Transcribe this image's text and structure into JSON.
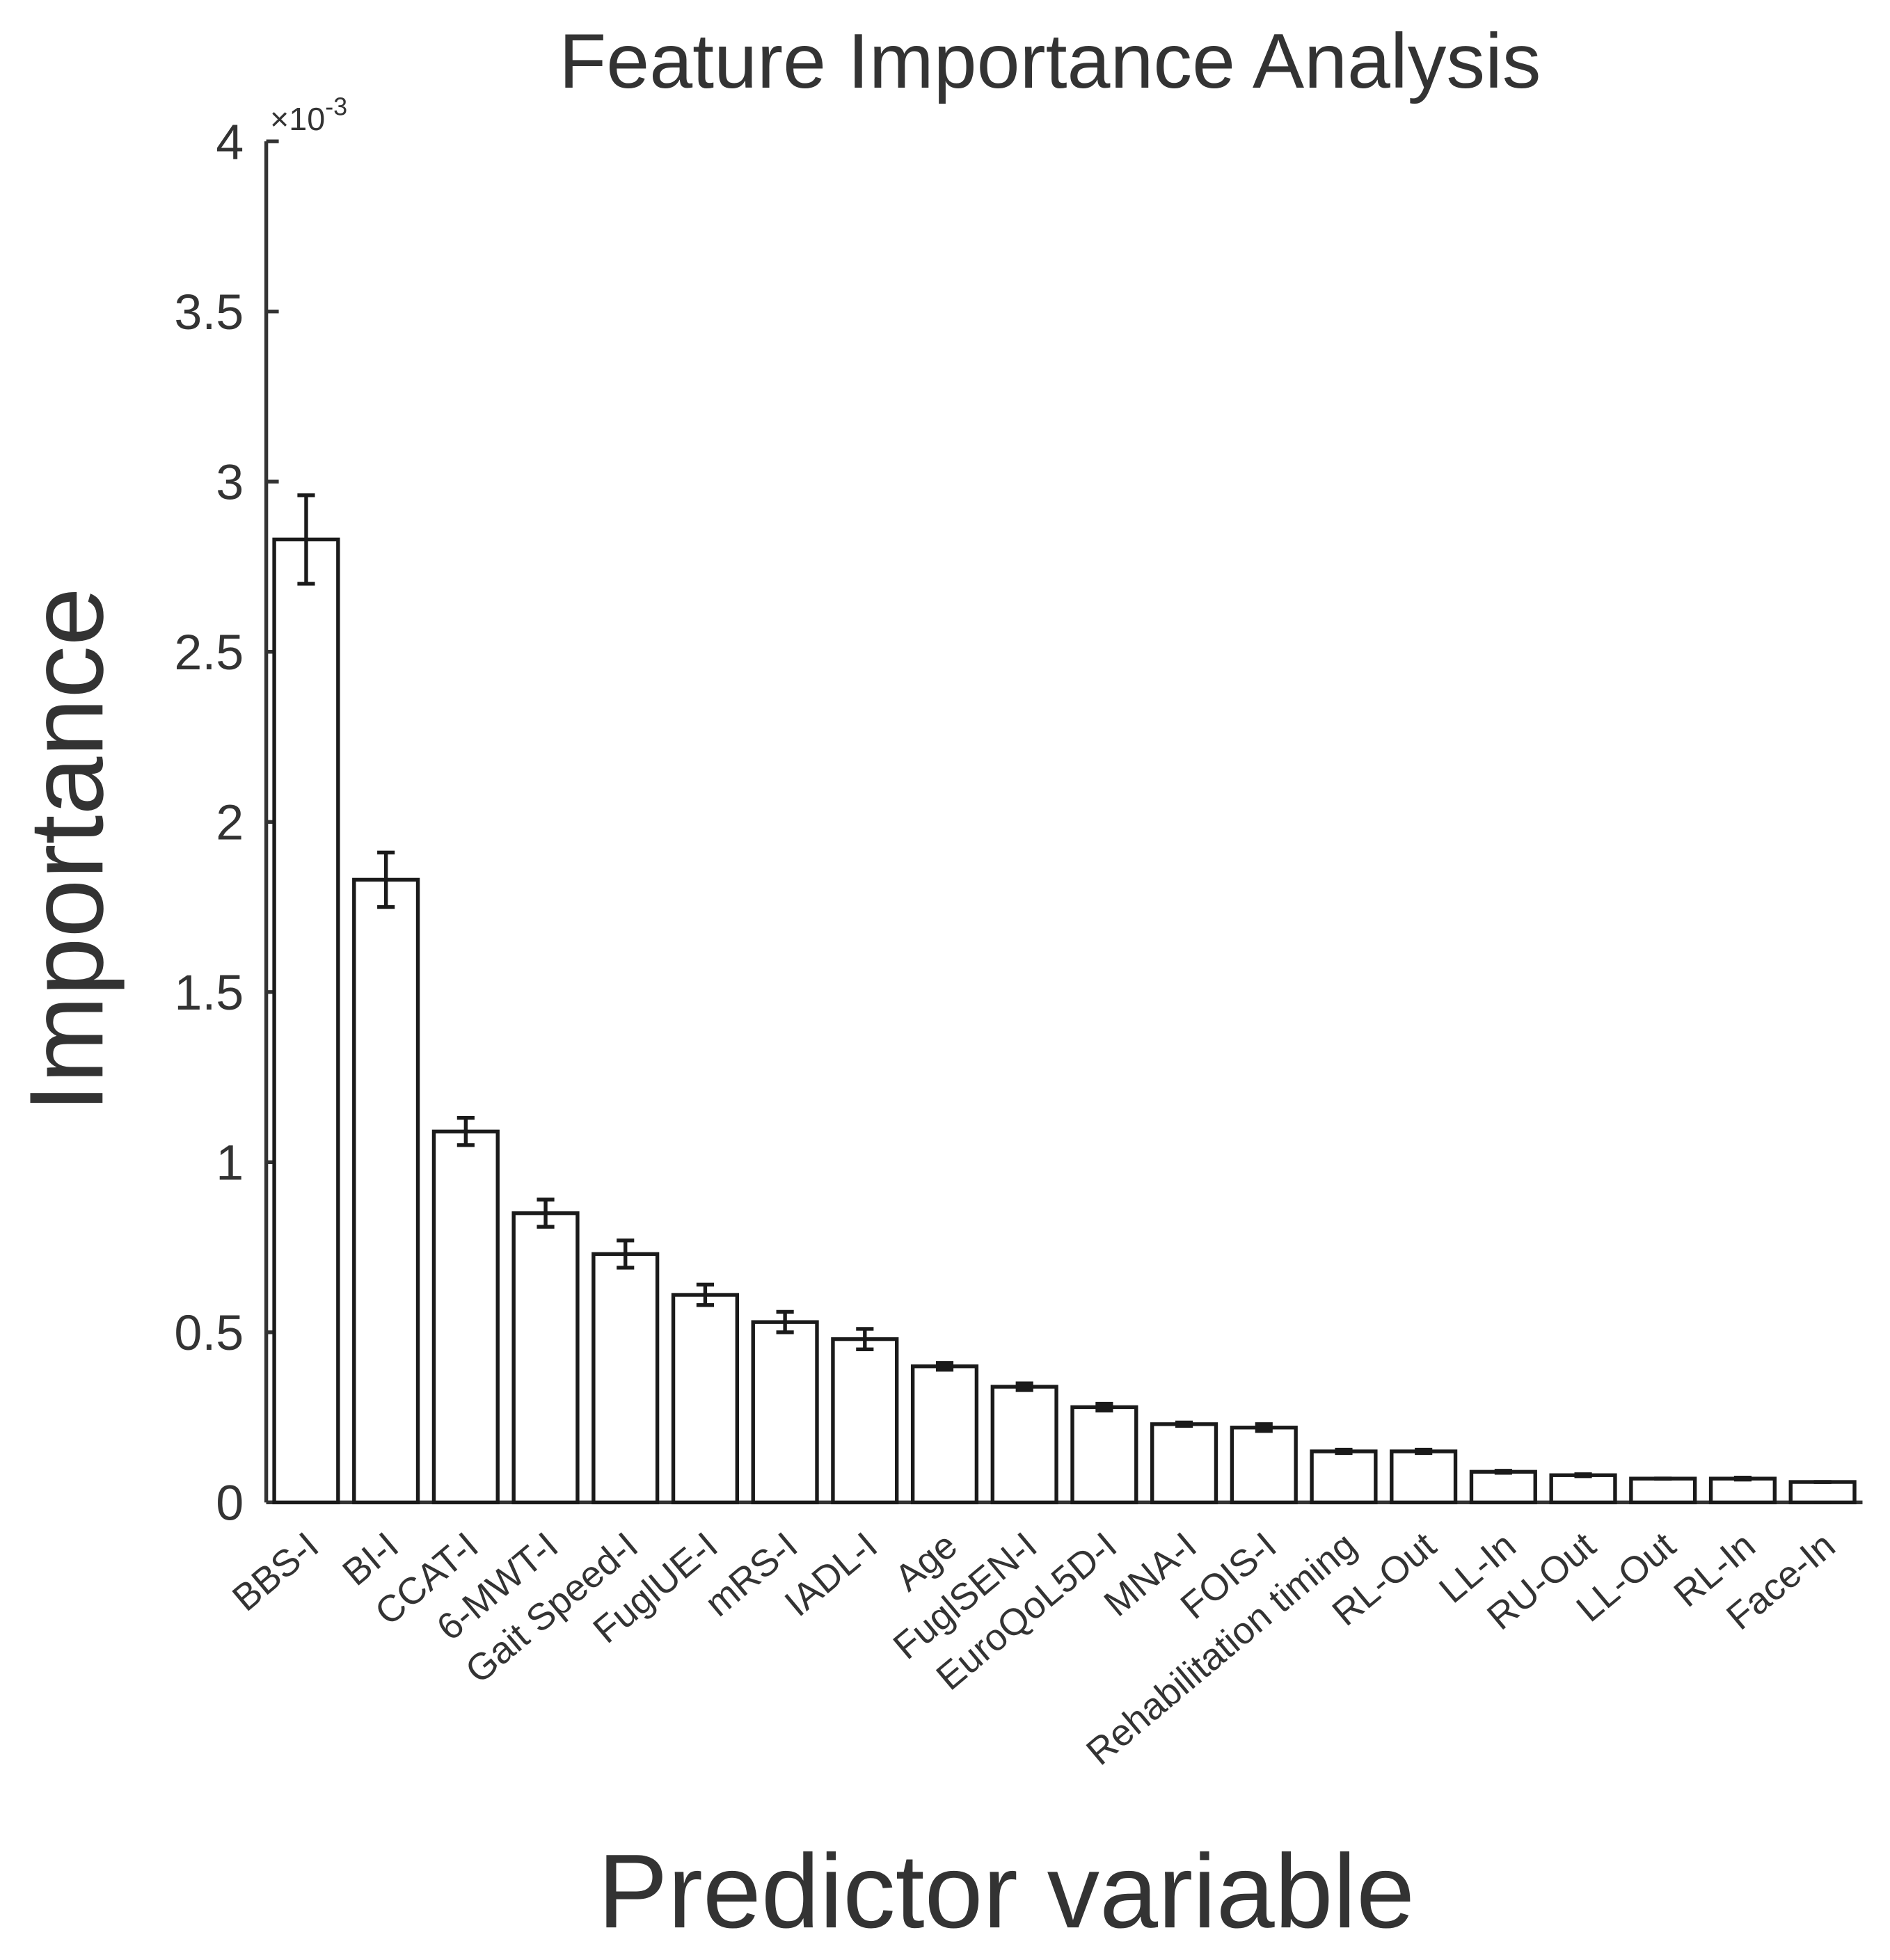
{
  "chart_data": {
    "type": "bar",
    "title": "Feature Importance Analysis",
    "x_label": "Predictor variable",
    "y_label": "Importance",
    "y_scale_label": {
      "base": "×10",
      "exponent": "-3"
    },
    "categories": [
      "BBS-I",
      "BI-I",
      "CCAT-I",
      "6-MWT-I",
      "Gait Speed-I",
      "FuglUE-I",
      "mRS-I",
      "IADL-I",
      "Age",
      "FuglSEN-I",
      "EuroQoL5D-I",
      "MNA-I",
      "FOIS-I",
      "Rehabilitation timing",
      "RL-Out",
      "LL-In",
      "RU-Out",
      "LL-Out",
      "RL-In",
      "Face-In"
    ],
    "values": [
      2.83,
      1.83,
      1.09,
      0.85,
      0.73,
      0.61,
      0.53,
      0.48,
      0.4,
      0.34,
      0.28,
      0.23,
      0.22,
      0.15,
      0.15,
      0.09,
      0.08,
      0.07,
      0.07,
      0.06
    ],
    "errors": [
      0.13,
      0.08,
      0.04,
      0.04,
      0.04,
      0.03,
      0.03,
      0.03,
      0.01,
      0.01,
      0.01,
      0.005,
      0.01,
      0.005,
      0.005,
      0.003,
      0.003,
      0,
      0.003,
      0
    ],
    "color": "#ffffff",
    "edge_color": "#1a1a1a",
    "ylim": [
      0,
      4
    ],
    "yticks": [
      0,
      0.5,
      1,
      1.5,
      2,
      2.5,
      3,
      3.5,
      4
    ],
    "grid": false
  }
}
